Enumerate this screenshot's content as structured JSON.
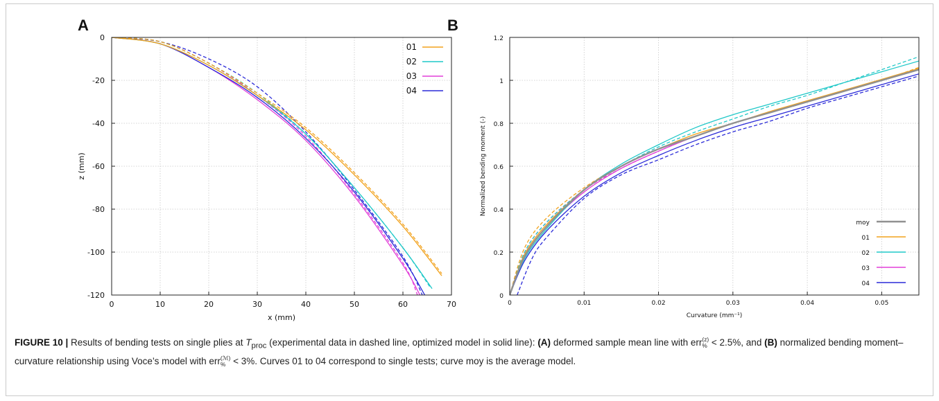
{
  "panel_a": {
    "letter": "A",
    "xlabel": "x (mm)",
    "ylabel": "z (mm)",
    "x_ticks": [
      "0",
      "10",
      "20",
      "30",
      "40",
      "50",
      "60",
      "70"
    ],
    "y_ticks": [
      "0",
      "-20",
      "-40",
      "-60",
      "-80",
      "-100",
      "-120"
    ],
    "legend": [
      "01",
      "02",
      "03",
      "04"
    ]
  },
  "panel_b": {
    "letter": "B",
    "xlabel": "Curvature (mm⁻¹)",
    "ylabel": "Normalized bending moment (-)",
    "x_ticks": [
      "0",
      "0.01",
      "0.02",
      "0.03",
      "0.04",
      "0.05"
    ],
    "y_ticks": [
      "0",
      "0.2",
      "0.4",
      "0.6",
      "0.8",
      "1",
      "1.2"
    ],
    "legend": [
      "moy",
      "01",
      "02",
      "03",
      "04"
    ]
  },
  "caption": {
    "label": "FIGURE 10 |",
    "text_1": " Results of bending tests on single plies at ",
    "t_symbol": "T",
    "t_sub": "proc",
    "text_2": " (experimental data in dashed line, optimized model in solid line): ",
    "part_a": "(A)",
    "text_3": " deformed sample mean line with ",
    "err_a": "err",
    "err_a_sup": "(z)",
    "err_a_sub": "%",
    "text_4": " < 2.5%, and ",
    "part_b": "(B)",
    "text_5": " normalized bending moment–curvature relationship using Voce’s model with ",
    "err_b": "err",
    "err_b_sup": "(ℳ)",
    "err_b_sub": "%",
    "text_6": " < 3%. Curves 01 to 04 correspond to single tests; curve moy is the average model."
  },
  "chart_data": [
    {
      "type": "line",
      "title": "",
      "xlabel": "x (mm)",
      "ylabel": "z (mm)",
      "xlim": [
        0,
        70
      ],
      "ylim": [
        -120,
        0
      ],
      "grid": true,
      "legend_position": "top-right",
      "line_styles": {
        "experimental": "dashed",
        "model": "solid"
      },
      "colors": {
        "01": "#f2a21c",
        "02": "#1fc8c8",
        "03": "#e23ed8",
        "04": "#2a2ad8"
      },
      "series": [
        {
          "name": "01",
          "style": "solid",
          "x": [
            0,
            10,
            20,
            30,
            40,
            50,
            60,
            68
          ],
          "y": [
            0,
            -3,
            -13,
            -27,
            -43,
            -64,
            -88,
            -111
          ]
        },
        {
          "name": "01",
          "style": "dashed",
          "x": [
            0,
            10,
            20,
            30,
            40,
            50,
            60,
            68
          ],
          "y": [
            0,
            -2,
            -12,
            -26,
            -42,
            -63,
            -87,
            -110
          ]
        },
        {
          "name": "02",
          "style": "solid",
          "x": [
            0,
            10,
            20,
            30,
            40,
            50,
            60,
            66
          ],
          "y": [
            0,
            -3,
            -13,
            -27,
            -45,
            -70,
            -98,
            -117
          ]
        },
        {
          "name": "02",
          "style": "dashed",
          "x": [
            0,
            10,
            20,
            30,
            40,
            50,
            60,
            65.5
          ],
          "y": [
            0,
            -2,
            -12,
            -26,
            -45,
            -70,
            -98,
            -116
          ]
        },
        {
          "name": "03",
          "style": "solid",
          "x": [
            0,
            10,
            20,
            30,
            40,
            50,
            60,
            63.5
          ],
          "y": [
            0,
            -3,
            -14,
            -29,
            -48,
            -74,
            -106,
            -120
          ]
        },
        {
          "name": "03",
          "style": "dashed",
          "x": [
            0,
            10,
            20,
            30,
            40,
            50,
            60,
            63
          ],
          "y": [
            0,
            -2,
            -12,
            -27,
            -46,
            -73,
            -105,
            -120
          ]
        },
        {
          "name": "04",
          "style": "solid",
          "x": [
            0,
            10,
            20,
            30,
            40,
            50,
            60,
            64.5
          ],
          "y": [
            0,
            -3,
            -14,
            -28,
            -47,
            -72,
            -103,
            -120
          ]
        },
        {
          "name": "04",
          "style": "dashed",
          "x": [
            0,
            10,
            20,
            30,
            40,
            50,
            60,
            64
          ],
          "y": [
            0,
            -2,
            -10,
            -23,
            -44,
            -71,
            -102,
            -120
          ]
        }
      ]
    },
    {
      "type": "line",
      "title": "",
      "xlabel": "Curvature (mm⁻¹)",
      "ylabel": "Normalized bending moment (-)",
      "xlim": [
        0,
        0.055
      ],
      "ylim": [
        0,
        1.2
      ],
      "grid": true,
      "legend_position": "bottom-right",
      "line_styles": {
        "experimental": "dashed",
        "model": "solid"
      },
      "colors": {
        "moy": "#909090",
        "01": "#f2a21c",
        "02": "#1fc8c8",
        "03": "#e23ed8",
        "04": "#2a2ad8"
      },
      "series": [
        {
          "name": "moy",
          "style": "solid",
          "x": [
            0,
            0.002,
            0.005,
            0.01,
            0.015,
            0.02,
            0.025,
            0.03,
            0.035,
            0.04,
            0.045,
            0.05,
            0.055
          ],
          "y": [
            0,
            0.18,
            0.32,
            0.49,
            0.6,
            0.68,
            0.74,
            0.8,
            0.85,
            0.9,
            0.95,
            1.0,
            1.05
          ]
        },
        {
          "name": "01",
          "style": "solid",
          "x": [
            0,
            0.002,
            0.005,
            0.01,
            0.015,
            0.02,
            0.025,
            0.03,
            0.035,
            0.04,
            0.045,
            0.05,
            0.055
          ],
          "y": [
            0,
            0.19,
            0.33,
            0.49,
            0.6,
            0.68,
            0.75,
            0.8,
            0.855,
            0.905,
            0.955,
            1.005,
            1.055
          ]
        },
        {
          "name": "01",
          "style": "dashed",
          "x": [
            0,
            0.002,
            0.005,
            0.01,
            0.015,
            0.02,
            0.025,
            0.03,
            0.035,
            0.04,
            0.045,
            0.05,
            0.055
          ],
          "y": [
            0,
            0.22,
            0.36,
            0.5,
            0.6,
            0.68,
            0.74,
            0.8,
            0.85,
            0.9,
            0.95,
            1.0,
            1.06
          ]
        },
        {
          "name": "02",
          "style": "solid",
          "x": [
            0,
            0.002,
            0.005,
            0.01,
            0.015,
            0.02,
            0.025,
            0.03,
            0.035,
            0.04,
            0.045,
            0.05,
            0.055
          ],
          "y": [
            0,
            0.17,
            0.31,
            0.49,
            0.61,
            0.7,
            0.78,
            0.84,
            0.89,
            0.94,
            0.99,
            1.04,
            1.09
          ]
        },
        {
          "name": "02",
          "style": "dashed",
          "x": [
            0,
            0.002,
            0.005,
            0.01,
            0.015,
            0.02,
            0.025,
            0.03,
            0.035,
            0.04,
            0.045,
            0.05,
            0.055
          ],
          "y": [
            0,
            0.2,
            0.34,
            0.49,
            0.6,
            0.69,
            0.76,
            0.82,
            0.88,
            0.93,
            0.99,
            1.05,
            1.11
          ]
        },
        {
          "name": "03",
          "style": "solid",
          "x": [
            0,
            0.002,
            0.005,
            0.01,
            0.015,
            0.02,
            0.025,
            0.03,
            0.035,
            0.04,
            0.045,
            0.05,
            0.055
          ],
          "y": [
            0,
            0.18,
            0.32,
            0.48,
            0.59,
            0.67,
            0.74,
            0.8,
            0.85,
            0.9,
            0.95,
            1.0,
            1.05
          ]
        },
        {
          "name": "03",
          "style": "dashed",
          "x": [
            0,
            0.002,
            0.005,
            0.01,
            0.015,
            0.02,
            0.025,
            0.03,
            0.035,
            0.04,
            0.045,
            0.05,
            0.055
          ],
          "y": [
            0,
            0.2,
            0.34,
            0.49,
            0.59,
            0.67,
            0.74,
            0.8,
            0.85,
            0.9,
            0.95,
            1.0,
            1.05
          ]
        },
        {
          "name": "04",
          "style": "solid",
          "x": [
            0,
            0.002,
            0.005,
            0.01,
            0.015,
            0.02,
            0.025,
            0.03,
            0.035,
            0.04,
            0.045,
            0.05,
            0.055
          ],
          "y": [
            0,
            0.16,
            0.3,
            0.46,
            0.57,
            0.65,
            0.72,
            0.78,
            0.83,
            0.88,
            0.93,
            0.98,
            1.03
          ]
        },
        {
          "name": "04",
          "style": "dashed",
          "x": [
            0.001,
            0.003,
            0.005,
            0.01,
            0.015,
            0.02,
            0.025,
            0.03,
            0.035,
            0.04,
            0.045,
            0.05,
            0.055
          ],
          "y": [
            0,
            0.17,
            0.27,
            0.45,
            0.56,
            0.63,
            0.7,
            0.76,
            0.81,
            0.87,
            0.92,
            0.97,
            1.02
          ]
        }
      ]
    }
  ]
}
